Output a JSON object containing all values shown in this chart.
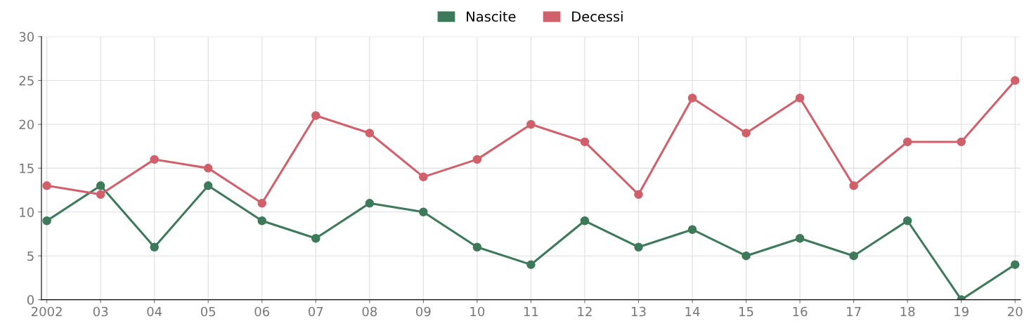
{
  "chart_data": {
    "type": "line",
    "categories": [
      "2002",
      "03",
      "04",
      "05",
      "06",
      "07",
      "08",
      "09",
      "10",
      "11",
      "12",
      "13",
      "14",
      "15",
      "16",
      "17",
      "18",
      "19",
      "20"
    ],
    "series": [
      {
        "name": "Nascite",
        "color": "#3d7a5a",
        "values": [
          9,
          13,
          6,
          13,
          9,
          7,
          11,
          10,
          6,
          4,
          9,
          6,
          8,
          5,
          7,
          5,
          9,
          0,
          4
        ]
      },
      {
        "name": "Decessi",
        "color": "#d0606a",
        "values": [
          13,
          12,
          16,
          15,
          11,
          21,
          19,
          14,
          16,
          20,
          18,
          12,
          23,
          19,
          23,
          13,
          18,
          18,
          25
        ]
      }
    ],
    "ylim": [
      0,
      30
    ],
    "yticks": [
      0,
      5,
      10,
      15,
      20,
      25,
      30
    ],
    "grid": true,
    "legend": "top",
    "marker": "circle",
    "line_style": "solid"
  }
}
